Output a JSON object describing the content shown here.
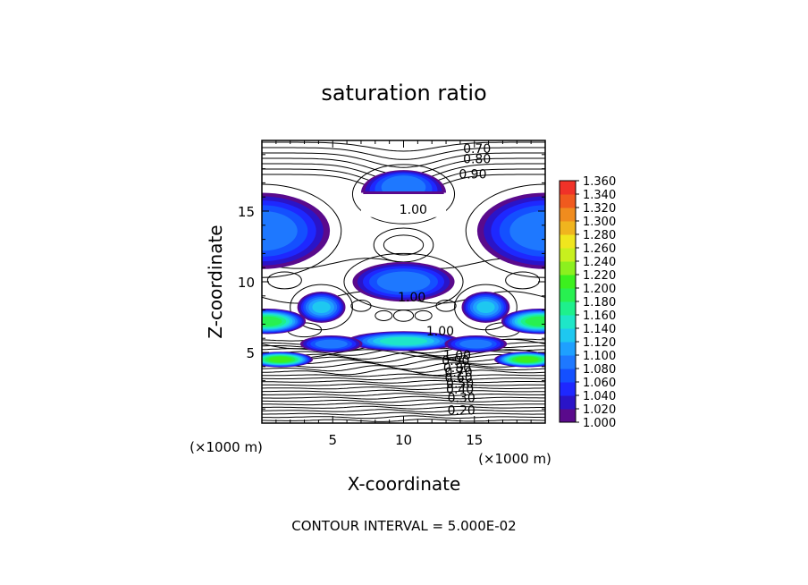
{
  "chart_data": {
    "type": "heatmap",
    "title": "saturation ratio",
    "xlabel": "X-coordinate",
    "ylabel": "Z-coordinate",
    "x_unit": "(×1000 m)",
    "z_unit": "(×1000 m)",
    "xlim": [
      0,
      20
    ],
    "ylim": [
      0,
      20
    ],
    "x_ticks": [
      "5",
      "10",
      "15"
    ],
    "x_tick_values": [
      5,
      10,
      15
    ],
    "y_ticks": [
      "5",
      "10",
      "15"
    ],
    "y_tick_values": [
      5,
      10,
      15
    ],
    "footer": "CONTOUR INTERVAL = 5.000E-02",
    "colorbar": {
      "levels": [
        1.0,
        1.02,
        1.04,
        1.06,
        1.08,
        1.1,
        1.12,
        1.14,
        1.16,
        1.18,
        1.2,
        1.22,
        1.24,
        1.26,
        1.28,
        1.3,
        1.32,
        1.34,
        1.36
      ],
      "labels": [
        "1.000",
        "1.020",
        "1.040",
        "1.060",
        "1.080",
        "1.100",
        "1.120",
        "1.140",
        "1.160",
        "1.180",
        "1.200",
        "1.220",
        "1.240",
        "1.260",
        "1.280",
        "1.300",
        "1.320",
        "1.340",
        "1.360"
      ],
      "colors": [
        "#5a0a8c",
        "#2a14c8",
        "#1e28ff",
        "#1450ff",
        "#1e78ff",
        "#1ea0ff",
        "#1ec8f0",
        "#1ee6c8",
        "#1ef08c",
        "#28f050",
        "#3cf01e",
        "#8cf01e",
        "#c8f01e",
        "#f0e61e",
        "#f0b41e",
        "#f08c1e",
        "#f05a1e",
        "#f03228",
        "#f08c8c"
      ]
    },
    "contour_labels": [
      {
        "text": "0.70",
        "x": 14.2,
        "z": 19.1
      },
      {
        "text": "0.80",
        "x": 14.2,
        "z": 18.4
      },
      {
        "text": "0.90",
        "x": 13.9,
        "z": 17.3
      },
      {
        "text": "1.00",
        "x": 9.7,
        "z": 14.8
      },
      {
        "text": "1.00",
        "x": 9.6,
        "z": 8.6
      },
      {
        "text": "1.00",
        "x": 11.6,
        "z": 6.2
      },
      {
        "text": "1.00",
        "x": 12.8,
        "z": 4.5
      },
      {
        "text": "0.90",
        "x": 12.7,
        "z": 4.1
      },
      {
        "text": "0.80",
        "x": 12.8,
        "z": 3.6
      },
      {
        "text": "0.70",
        "x": 12.9,
        "z": 3.3
      },
      {
        "text": "0.60",
        "x": 12.9,
        "z": 2.9
      },
      {
        "text": "0.50",
        "x": 13.0,
        "z": 2.5
      },
      {
        "text": "0.40",
        "x": 13.0,
        "z": 2.1
      },
      {
        "text": "0.30",
        "x": 13.1,
        "z": 1.5
      },
      {
        "text": "0.20",
        "x": 13.1,
        "z": 0.6
      }
    ],
    "supersaturated_regions": [
      {
        "x": 10.0,
        "z": 16.3,
        "rx": 3.0,
        "rz": 1.6,
        "peak": 1.09,
        "flat_bottom": true
      },
      {
        "x": 0.0,
        "z": 13.6,
        "rx": 4.8,
        "rz": 2.7,
        "peak": 1.09
      },
      {
        "x": 20.0,
        "z": 13.6,
        "rx": 4.8,
        "rz": 2.7,
        "peak": 1.09
      },
      {
        "x": 10.0,
        "z": 10.0,
        "rx": 3.6,
        "rz": 1.4,
        "peak": 1.09
      },
      {
        "x": 4.2,
        "z": 8.2,
        "rx": 1.7,
        "rz": 1.1,
        "peak": 1.12
      },
      {
        "x": 15.8,
        "z": 8.2,
        "rx": 1.7,
        "rz": 1.1,
        "peak": 1.12
      },
      {
        "x": 0.4,
        "z": 7.2,
        "rx": 2.7,
        "rz": 0.9,
        "peak": 1.19
      },
      {
        "x": 19.6,
        "z": 7.2,
        "rx": 2.7,
        "rz": 0.9,
        "peak": 1.19
      },
      {
        "x": 10.0,
        "z": 5.8,
        "rx": 4.0,
        "rz": 0.7,
        "peak": 1.15
      },
      {
        "x": 4.9,
        "z": 5.6,
        "rx": 2.2,
        "rz": 0.6,
        "peak": 1.09
      },
      {
        "x": 15.1,
        "z": 5.6,
        "rx": 2.2,
        "rz": 0.6,
        "peak": 1.09
      },
      {
        "x": 1.3,
        "z": 4.5,
        "rx": 2.3,
        "rz": 0.55,
        "peak": 1.21
      },
      {
        "x": 18.7,
        "z": 4.5,
        "rx": 2.3,
        "rz": 0.55,
        "peak": 1.21
      }
    ]
  }
}
